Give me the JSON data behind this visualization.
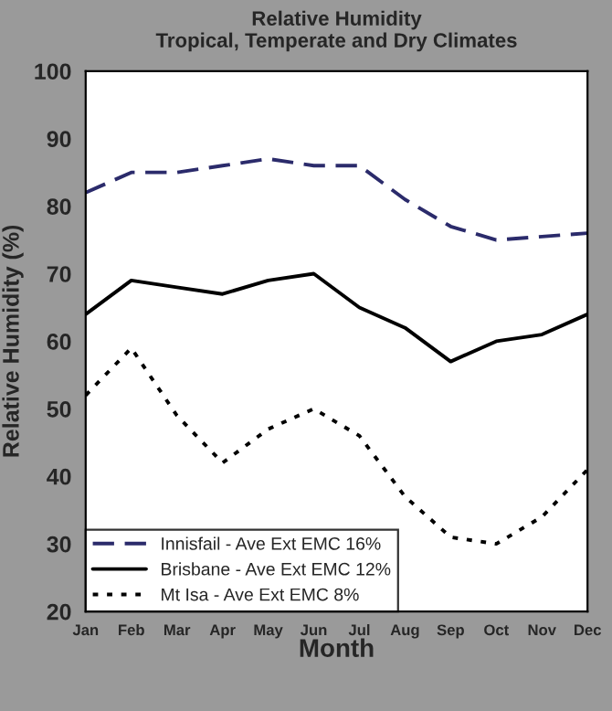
{
  "chart_data": {
    "type": "line",
    "title": "Relative Humidity\nTropical, Temperate and Dry Climates",
    "xlabel": "Month",
    "ylabel": "Relative Humidity (%)",
    "categories": [
      "Jan",
      "Feb",
      "Mar",
      "Apr",
      "May",
      "Jun",
      "Jul",
      "Aug",
      "Sep",
      "Oct",
      "Nov",
      "Dec"
    ],
    "series": [
      {
        "name": "Innisfail - Ave Ext EMC 16%",
        "color": "#2b2b6b",
        "line_style": "dashed",
        "values": [
          82,
          85,
          85,
          86,
          87,
          86,
          86,
          81,
          77,
          75,
          75.5,
          76
        ]
      },
      {
        "name": "Brisbane - Ave Ext EMC 12%",
        "color": "#000000",
        "line_style": "solid",
        "values": [
          64,
          69,
          68,
          67,
          69,
          70,
          65,
          62,
          57,
          60,
          61,
          64
        ]
      },
      {
        "name": "Mt Isa - Ave Ext EMC 8%",
        "color": "#000000",
        "line_style": "dotted",
        "values": [
          52,
          59,
          49,
          42,
          47,
          50,
          46,
          37,
          31,
          30,
          34,
          41
        ]
      }
    ],
    "ylim": [
      20,
      100
    ],
    "yticks": [
      20,
      30,
      40,
      50,
      60,
      70,
      80,
      90,
      100
    ],
    "grid": false,
    "legend": "bottom left",
    "marker": "none"
  }
}
